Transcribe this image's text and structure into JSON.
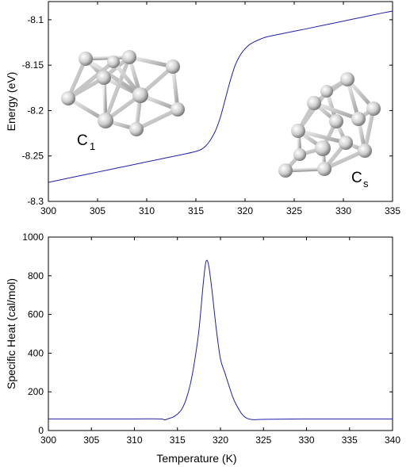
{
  "colors": {
    "line": "#1f1fa8",
    "axes": "#000000",
    "background": "#ffffff",
    "cluster_fill": "#d9d9d9"
  },
  "chart_data": [
    {
      "type": "line",
      "xlabel": "",
      "ylabel": "Energy (eV)",
      "xlim": [
        300,
        335
      ],
      "ylim": [
        -8.3,
        -8.08
      ],
      "xticks": [
        "300",
        "305",
        "310",
        "315",
        "320",
        "325",
        "330",
        "335"
      ],
      "yticks": [
        "-8.3",
        "-8.25",
        "-8.2",
        "-8.15",
        "-8.1"
      ],
      "grid": false,
      "series": [
        {
          "x": [
            300,
            302,
            304,
            306,
            308,
            310,
            312,
            314,
            315,
            315.5,
            316,
            316.5,
            317,
            317.5,
            318,
            318.5,
            319,
            319.5,
            320,
            320.5,
            321,
            322,
            323,
            324,
            326,
            328,
            330,
            332,
            334,
            335
          ],
          "y": [
            -8.279,
            -8.2745,
            -8.27,
            -8.2655,
            -8.261,
            -8.2565,
            -8.252,
            -8.2475,
            -8.245,
            -8.243,
            -8.239,
            -8.232,
            -8.222,
            -8.207,
            -8.187,
            -8.167,
            -8.15,
            -8.139,
            -8.132,
            -8.127,
            -8.124,
            -8.1195,
            -8.117,
            -8.1148,
            -8.1105,
            -8.106,
            -8.1015,
            -8.097,
            -8.0925,
            -8.0905
          ]
        }
      ],
      "annotations": [
        {
          "label": "C",
          "subscript": "1"
        },
        {
          "label": "C",
          "subscript": "s"
        }
      ]
    },
    {
      "type": "line",
      "xlabel": "Temperature (K)",
      "ylabel": "Specific Heat (cal/mol)",
      "xlim": [
        300,
        340
      ],
      "ylim": [
        0,
        1000
      ],
      "xticks": [
        "300",
        "305",
        "310",
        "315",
        "320",
        "325",
        "330",
        "335",
        "340"
      ],
      "yticks": [
        "0",
        "200",
        "400",
        "600",
        "800",
        "1000"
      ],
      "grid": false,
      "series": [
        {
          "x": [
            300,
            305,
            310,
            313,
            313.5,
            314,
            314.5,
            315,
            315.5,
            316,
            316.5,
            317,
            317.5,
            318,
            318.3,
            318.6,
            319,
            319.5,
            320,
            320.5,
            321,
            321.5,
            322,
            322.5,
            323,
            323.5,
            324,
            325,
            330,
            335,
            340
          ],
          "y": [
            60,
            60,
            60,
            60,
            55,
            62,
            70,
            85,
            110,
            160,
            240,
            360,
            520,
            760,
            870,
            860,
            730,
            530,
            370,
            300,
            230,
            165,
            120,
            85,
            65,
            58,
            56,
            58,
            60,
            60,
            60
          ]
        }
      ]
    }
  ]
}
